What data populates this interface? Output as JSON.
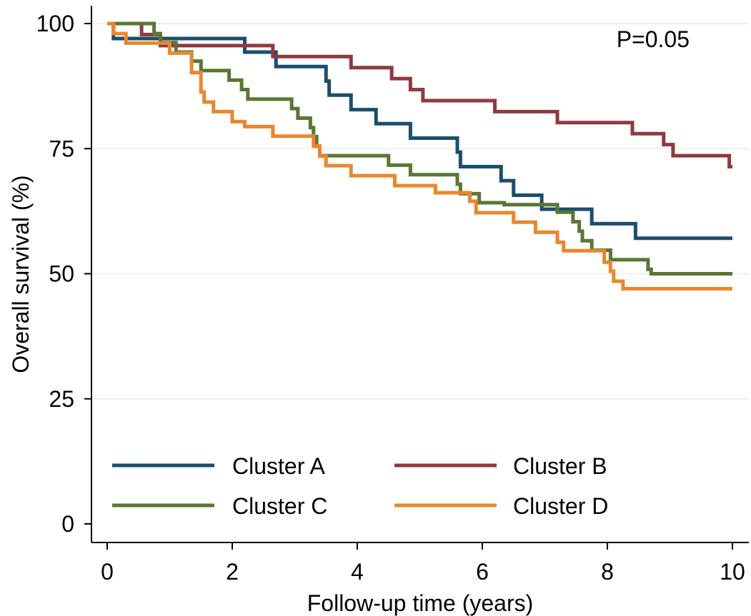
{
  "chart_data": {
    "type": "line",
    "title": "",
    "xlabel": "Follow-up time (years)",
    "ylabel": "Overall survival (%)",
    "xlim": [
      0,
      10
    ],
    "ylim": [
      0,
      100
    ],
    "xticks": [
      0,
      2,
      4,
      6,
      8,
      10
    ],
    "yticks": [
      0,
      25,
      50,
      75,
      100
    ],
    "grid": "horizontal",
    "legend_position": "bottom",
    "annotation": "P=0.05",
    "series": [
      {
        "name": "Cluster A",
        "color": "#1a4e6e",
        "steps": [
          [
            0,
            100
          ],
          [
            0.1,
            97
          ],
          [
            2.2,
            94.3
          ],
          [
            2.7,
            91.4
          ],
          [
            3.5,
            88.5
          ],
          [
            3.55,
            85.7
          ],
          [
            3.9,
            82.8
          ],
          [
            4.3,
            80
          ],
          [
            4.85,
            77.1
          ],
          [
            5.6,
            74.3
          ],
          [
            5.65,
            71.4
          ],
          [
            6.3,
            68.6
          ],
          [
            6.5,
            65.7
          ],
          [
            6.95,
            62.9
          ],
          [
            7.75,
            60
          ],
          [
            8.45,
            57.1
          ],
          [
            10,
            57.1
          ]
        ]
      },
      {
        "name": "Cluster B",
        "color": "#8f3a3f",
        "steps": [
          [
            0,
            100
          ],
          [
            0.55,
            97.8
          ],
          [
            0.85,
            95.6
          ],
          [
            2.65,
            93.4
          ],
          [
            3.9,
            91.2
          ],
          [
            4.55,
            89
          ],
          [
            4.85,
            86.8
          ],
          [
            5.05,
            84.6
          ],
          [
            6.2,
            82.4
          ],
          [
            7.2,
            80.2
          ],
          [
            8.4,
            78
          ],
          [
            8.9,
            75.8
          ],
          [
            9.05,
            73.6
          ],
          [
            9.95,
            71.4
          ],
          [
            10,
            71.4
          ]
        ]
      },
      {
        "name": "Cluster C",
        "color": "#5a7634",
        "steps": [
          [
            0,
            100
          ],
          [
            0.75,
            98
          ],
          [
            0.85,
            96.2
          ],
          [
            1.1,
            94.3
          ],
          [
            1.35,
            92.5
          ],
          [
            1.5,
            90.6
          ],
          [
            1.95,
            88.7
          ],
          [
            2.15,
            86.8
          ],
          [
            2.25,
            84.9
          ],
          [
            2.95,
            83
          ],
          [
            3.05,
            81.1
          ],
          [
            3.25,
            79.2
          ],
          [
            3.3,
            77.4
          ],
          [
            3.35,
            75.5
          ],
          [
            3.4,
            73.6
          ],
          [
            4.5,
            71.7
          ],
          [
            4.85,
            69.8
          ],
          [
            5.6,
            67.9
          ],
          [
            5.65,
            66
          ],
          [
            5.95,
            64.2
          ],
          [
            6.35,
            63.8
          ],
          [
            7.2,
            62.3
          ],
          [
            7.45,
            60.4
          ],
          [
            7.55,
            58.5
          ],
          [
            7.6,
            56.6
          ],
          [
            7.75,
            54.7
          ],
          [
            8.05,
            52.8
          ],
          [
            8.65,
            50.9
          ],
          [
            8.7,
            50
          ],
          [
            10,
            50
          ]
        ]
      },
      {
        "name": "Cluster D",
        "color": "#e8882c",
        "steps": [
          [
            0,
            100
          ],
          [
            0.1,
            98
          ],
          [
            0.3,
            96.1
          ],
          [
            1,
            94.1
          ],
          [
            1.35,
            90.2
          ],
          [
            1.5,
            86.3
          ],
          [
            1.55,
            84.3
          ],
          [
            1.7,
            82.4
          ],
          [
            2,
            80.4
          ],
          [
            2.2,
            79.4
          ],
          [
            2.65,
            77.5
          ],
          [
            3.3,
            75.5
          ],
          [
            3.4,
            73.5
          ],
          [
            3.5,
            71.6
          ],
          [
            3.9,
            69.6
          ],
          [
            4.6,
            67.6
          ],
          [
            5.25,
            66.2
          ],
          [
            5.8,
            64.5
          ],
          [
            5.9,
            62.2
          ],
          [
            6.5,
            60.3
          ],
          [
            6.85,
            58.3
          ],
          [
            7.2,
            56.3
          ],
          [
            7.3,
            54.6
          ],
          [
            7.95,
            52.3
          ],
          [
            8.05,
            50.5
          ],
          [
            8.1,
            48.5
          ],
          [
            8.25,
            47
          ],
          [
            10,
            47
          ]
        ]
      }
    ]
  }
}
